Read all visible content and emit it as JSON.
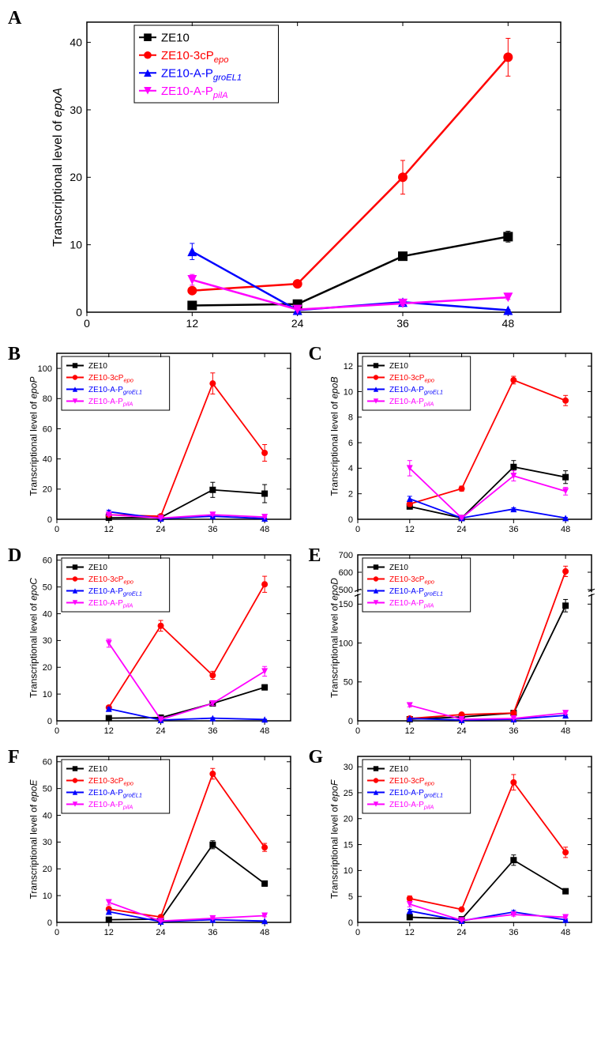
{
  "colors": {
    "ZE10": "#000000",
    "ZE10_3cPepo": "#ff0000",
    "ZE10_A_PgroEL1": "#0000ff",
    "ZE10_A_PpilA": "#ff00ff",
    "grid": "#000000",
    "axis": "#000000",
    "background": "#ffffff"
  },
  "markers": {
    "ZE10": "square",
    "ZE10_3cPepo": "circle",
    "ZE10_A_PgroEL1": "triangle-up",
    "ZE10_A_PpilA": "triangle-down"
  },
  "legend_labels": {
    "ZE10": "ZE10",
    "ZE10_3cPepo": "ZE10-3cP",
    "ZE10_3cPepo_sub": "epo",
    "ZE10_A_PgroEL1": "ZE10-A-P",
    "ZE10_A_PgroEL1_sub": "groEL1",
    "ZE10_A_PpilA": "ZE10-A-P",
    "ZE10_A_PpilA_sub": "pilA"
  },
  "panels": {
    "A": {
      "label": "A",
      "ylabel_pre": "Transcriptional level of ",
      "ylabel_gene": "epoA",
      "xlim": [
        0,
        54
      ],
      "ylim": [
        0,
        43
      ],
      "xticks": [
        0,
        12,
        24,
        36,
        48
      ],
      "yticks": [
        0,
        10,
        20,
        30,
        40
      ],
      "series": {
        "ZE10": {
          "x": [
            12,
            24,
            36,
            48
          ],
          "y": [
            1.0,
            1.2,
            8.3,
            11.2
          ],
          "err": [
            0.2,
            0.2,
            0.6,
            0.8
          ]
        },
        "ZE10_3cPepo": {
          "x": [
            12,
            24,
            36,
            48
          ],
          "y": [
            3.2,
            4.2,
            20.0,
            37.8
          ],
          "err": [
            0.5,
            0.3,
            2.5,
            2.8
          ]
        },
        "ZE10_A_PgroEL1": {
          "x": [
            12,
            24,
            36,
            48
          ],
          "y": [
            9.0,
            0.3,
            1.5,
            0.3
          ],
          "err": [
            1.2,
            0.1,
            0.3,
            0.1
          ]
        },
        "ZE10_A_PpilA": {
          "x": [
            12,
            24,
            36,
            48
          ],
          "y": [
            4.8,
            0.4,
            1.3,
            2.2
          ],
          "err": [
            0.8,
            0.1,
            0.3,
            0.3
          ]
        }
      },
      "label_fontsize": 16,
      "tick_fontsize": 14,
      "line_width": 2.5,
      "marker_size": 6
    },
    "B": {
      "label": "B",
      "ylabel_pre": "Transcriptional level of ",
      "ylabel_gene": "epoP",
      "xlim": [
        0,
        54
      ],
      "ylim": [
        0,
        110
      ],
      "xticks": [
        0,
        12,
        24,
        36,
        48
      ],
      "yticks": [
        0,
        20,
        40,
        60,
        80,
        100
      ],
      "series": {
        "ZE10": {
          "x": [
            12,
            24,
            36,
            48
          ],
          "y": [
            1.0,
            1.2,
            19.5,
            17.0
          ],
          "err": [
            0.2,
            0.2,
            5.0,
            6.0
          ]
        },
        "ZE10_3cPepo": {
          "x": [
            12,
            24,
            36,
            48
          ],
          "y": [
            3.0,
            2.0,
            90.0,
            44.0
          ],
          "err": [
            0.5,
            0.3,
            7.0,
            5.5
          ]
        },
        "ZE10_A_PgroEL1": {
          "x": [
            12,
            24,
            36,
            48
          ],
          "y": [
            5.0,
            0.5,
            2.0,
            0.5
          ],
          "err": [
            1.0,
            0.2,
            0.5,
            0.2
          ]
        },
        "ZE10_A_PpilA": {
          "x": [
            12,
            24,
            36,
            48
          ],
          "y": [
            3.0,
            0.8,
            3.0,
            1.5
          ],
          "err": [
            0.5,
            0.2,
            0.5,
            0.3
          ]
        }
      }
    },
    "C": {
      "label": "C",
      "ylabel_pre": "Transcriptional level of ",
      "ylabel_gene": "epoB",
      "xlim": [
        0,
        54
      ],
      "ylim": [
        0,
        13
      ],
      "xticks": [
        0,
        12,
        24,
        36,
        48
      ],
      "yticks": [
        0,
        2,
        4,
        6,
        8,
        10,
        12
      ],
      "series": {
        "ZE10": {
          "x": [
            12,
            24,
            36,
            48
          ],
          "y": [
            1.0,
            0.1,
            4.1,
            3.3
          ],
          "err": [
            0.1,
            0.05,
            0.5,
            0.5
          ]
        },
        "ZE10_3cPepo": {
          "x": [
            12,
            24,
            36,
            48
          ],
          "y": [
            1.2,
            2.4,
            10.9,
            9.3
          ],
          "err": [
            0.2,
            0.2,
            0.3,
            0.4
          ]
        },
        "ZE10_A_PgroEL1": {
          "x": [
            12,
            24,
            36,
            48
          ],
          "y": [
            1.6,
            0.1,
            0.8,
            0.1
          ],
          "err": [
            0.2,
            0.05,
            0.1,
            0.05
          ]
        },
        "ZE10_A_PpilA": {
          "x": [
            12,
            24,
            36,
            48
          ],
          "y": [
            4.0,
            0.1,
            3.4,
            2.2
          ],
          "err": [
            0.6,
            0.05,
            0.4,
            0.3
          ]
        }
      }
    },
    "D": {
      "label": "D",
      "ylabel_pre": "Transcriptional level of ",
      "ylabel_gene": "epoC",
      "xlim": [
        0,
        54
      ],
      "ylim": [
        0,
        62
      ],
      "xticks": [
        0,
        12,
        24,
        36,
        48
      ],
      "yticks": [
        0,
        10,
        20,
        30,
        40,
        50,
        60
      ],
      "series": {
        "ZE10": {
          "x": [
            12,
            24,
            36,
            48
          ],
          "y": [
            1.0,
            1.2,
            6.5,
            12.5
          ],
          "err": [
            0.2,
            0.2,
            0.5,
            1.0
          ]
        },
        "ZE10_3cPepo": {
          "x": [
            12,
            24,
            36,
            48
          ],
          "y": [
            5.0,
            35.5,
            17.0,
            51.0
          ],
          "err": [
            0.5,
            2.0,
            1.5,
            3.0
          ]
        },
        "ZE10_A_PgroEL1": {
          "x": [
            12,
            24,
            36,
            48
          ],
          "y": [
            4.5,
            0.3,
            1.0,
            0.5
          ],
          "err": [
            0.5,
            0.1,
            0.2,
            0.1
          ]
        },
        "ZE10_A_PpilA": {
          "x": [
            12,
            24,
            36,
            48
          ],
          "y": [
            29.0,
            0.5,
            6.5,
            18.5
          ],
          "err": [
            1.5,
            0.2,
            0.8,
            1.8
          ]
        }
      }
    },
    "E": {
      "label": "E",
      "ylabel_pre": "Transcriptional level of ",
      "ylabel_gene": "epoD",
      "xlim": [
        0,
        54
      ],
      "ylim": [
        0,
        700
      ],
      "xticks": [
        0,
        12,
        24,
        36,
        48
      ],
      "yticks_lower": [
        0,
        50,
        100,
        150
      ],
      "yticks_upper": [
        500,
        600,
        700
      ],
      "axis_break": true,
      "break_at": 160,
      "upper_start": 490,
      "series": {
        "ZE10": {
          "x": [
            12,
            24,
            36,
            48
          ],
          "y": [
            2.0,
            5.0,
            10.0,
            148.0
          ],
          "err": [
            0.5,
            1.0,
            1.5,
            8.0
          ]
        },
        "ZE10_3cPepo": {
          "x": [
            12,
            24,
            36,
            48
          ],
          "y": [
            3.0,
            8.0,
            10.0,
            605.0
          ],
          "err": [
            0.5,
            1.0,
            1.5,
            30.0
          ]
        },
        "ZE10_A_PgroEL1": {
          "x": [
            12,
            24,
            36,
            48
          ],
          "y": [
            3.0,
            1.0,
            2.0,
            7.0
          ],
          "err": [
            0.5,
            0.3,
            0.5,
            1.0
          ]
        },
        "ZE10_A_PpilA": {
          "x": [
            12,
            24,
            36,
            48
          ],
          "y": [
            20.0,
            2.0,
            3.0,
            10.0
          ],
          "err": [
            2.0,
            0.5,
            0.5,
            1.5
          ]
        }
      }
    },
    "F": {
      "label": "F",
      "ylabel_pre": "Transcriptional level of ",
      "ylabel_gene": "epoE",
      "xlim": [
        0,
        54
      ],
      "ylim": [
        0,
        62
      ],
      "xticks": [
        0,
        12,
        24,
        36,
        48
      ],
      "yticks": [
        0,
        10,
        20,
        30,
        40,
        50,
        60
      ],
      "series": {
        "ZE10": {
          "x": [
            12,
            24,
            36,
            48
          ],
          "y": [
            1.0,
            1.2,
            29.0,
            14.5
          ],
          "err": [
            0.2,
            0.2,
            1.5,
            1.0
          ]
        },
        "ZE10_3cPepo": {
          "x": [
            12,
            24,
            36,
            48
          ],
          "y": [
            5.0,
            2.0,
            55.5,
            28.0
          ],
          "err": [
            0.5,
            0.3,
            2.0,
            1.5
          ]
        },
        "ZE10_A_PgroEL1": {
          "x": [
            12,
            24,
            36,
            48
          ],
          "y": [
            4.0,
            0.3,
            1.0,
            0.5
          ],
          "err": [
            0.5,
            0.1,
            0.2,
            0.1
          ]
        },
        "ZE10_A_PpilA": {
          "x": [
            12,
            24,
            36,
            48
          ],
          "y": [
            7.5,
            0.5,
            1.5,
            2.5
          ],
          "err": [
            1.0,
            0.2,
            0.3,
            0.4
          ]
        }
      }
    },
    "G": {
      "label": "G",
      "ylabel_pre": "Transcriptional level of ",
      "ylabel_gene": "epoF",
      "xlim": [
        0,
        54
      ],
      "ylim": [
        0,
        32
      ],
      "xticks": [
        0,
        12,
        24,
        36,
        48
      ],
      "yticks": [
        0,
        5,
        10,
        15,
        20,
        25,
        30
      ],
      "series": {
        "ZE10": {
          "x": [
            12,
            24,
            36,
            48
          ],
          "y": [
            1.0,
            0.6,
            12.0,
            6.0
          ],
          "err": [
            0.2,
            0.1,
            1.0,
            0.5
          ]
        },
        "ZE10_3cPepo": {
          "x": [
            12,
            24,
            36,
            48
          ],
          "y": [
            4.6,
            2.5,
            27.0,
            13.5
          ],
          "err": [
            0.5,
            0.3,
            1.5,
            1.0
          ]
        },
        "ZE10_A_PgroEL1": {
          "x": [
            12,
            24,
            36,
            48
          ],
          "y": [
            2.2,
            0.3,
            2.0,
            0.5
          ],
          "err": [
            0.3,
            0.1,
            0.3,
            0.1
          ]
        },
        "ZE10_A_PpilA": {
          "x": [
            12,
            24,
            36,
            48
          ],
          "y": [
            3.5,
            0.4,
            1.5,
            1.0
          ],
          "err": [
            0.5,
            0.1,
            0.3,
            0.2
          ]
        }
      }
    }
  },
  "small_chart": {
    "label_fontsize": 12,
    "tick_fontsize": 11,
    "legend_fontsize": 10,
    "line_width": 1.8,
    "marker_size": 4
  }
}
